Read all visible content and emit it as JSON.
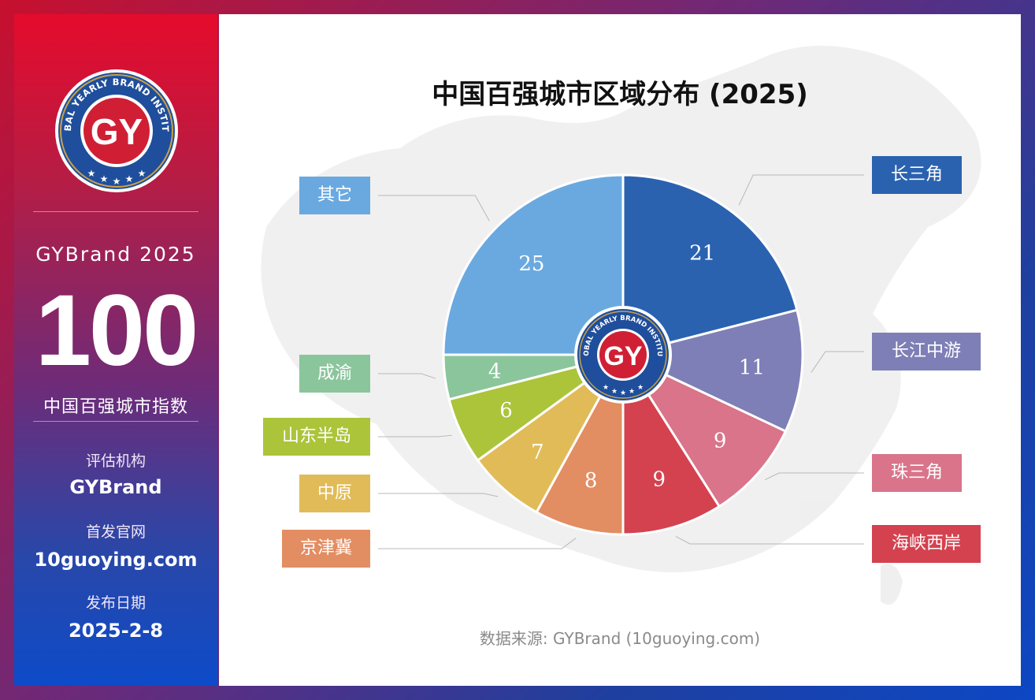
{
  "sidebar": {
    "brand_year": "GYBrand 2025",
    "big_number": "100",
    "index_name": "中国百强城市指数",
    "org_label": "评估机构",
    "org_value": "GYBrand",
    "site_label": "首发官网",
    "site_value": "10guoying.com",
    "date_label": "发布日期",
    "date_value": "2025-2-8",
    "logo_text": "GY",
    "logo_ring_text": "GLOBAL YEARLY BRAND INSTITUTE"
  },
  "chart_data": {
    "type": "pie",
    "title": "中国百强城市区域分布 (2025)",
    "source": "数据来源: GYBrand (10guoying.com)",
    "slices": [
      {
        "name": "长三角",
        "value": 21,
        "color": "#2a62b0"
      },
      {
        "name": "长江中游",
        "value": 11,
        "color": "#7e7fb6"
      },
      {
        "name": "珠三角",
        "value": 9,
        "color": "#d9748a"
      },
      {
        "name": "海峡西岸",
        "value": 9,
        "color": "#d4424f"
      },
      {
        "name": "京津冀",
        "value": 8,
        "color": "#e38d62"
      },
      {
        "name": "中原",
        "value": 7,
        "color": "#e1bb57"
      },
      {
        "name": "山东半岛",
        "value": 6,
        "color": "#abc43a"
      },
      {
        "name": "成渝",
        "value": 4,
        "color": "#8bc59c"
      },
      {
        "name": "其它",
        "value": 25,
        "color": "#6aa9e0"
      }
    ]
  }
}
